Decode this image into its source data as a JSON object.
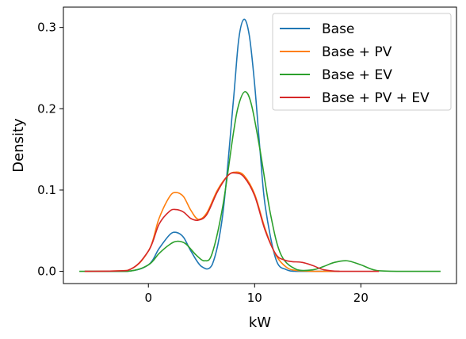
{
  "chart_data": {
    "type": "line",
    "title": "",
    "xlabel": "kW",
    "ylabel": "Density",
    "xlim": [
      -8,
      29
    ],
    "ylim": [
      -0.015,
      0.325
    ],
    "xticks": [
      0,
      10,
      20
    ],
    "xtick_labels": [
      "0",
      "10",
      "20"
    ],
    "yticks": [
      0.0,
      0.1,
      0.2,
      0.3
    ],
    "ytick_labels": [
      "0.0",
      "0.1",
      "0.2",
      "0.3"
    ],
    "grid": false,
    "legend_position": "top-right",
    "series": [
      {
        "name": "Base",
        "color": "#1f77b4",
        "x": [
          -6,
          -2,
          0,
          1,
          2,
          2.6,
          3.3,
          4,
          5,
          6,
          7,
          8,
          8.5,
          9,
          9.5,
          10,
          10.5,
          11,
          12,
          13,
          14,
          16,
          18
        ],
        "y": [
          0.0,
          0.0,
          0.008,
          0.028,
          0.045,
          0.048,
          0.042,
          0.025,
          0.006,
          0.008,
          0.07,
          0.21,
          0.285,
          0.31,
          0.29,
          0.23,
          0.15,
          0.08,
          0.015,
          0.002,
          0.0,
          0.0,
          0.0
        ]
      },
      {
        "name": "Base + PV",
        "color": "#ff7f0e",
        "x": [
          -6,
          -2,
          0,
          1,
          2,
          2.6,
          3.3,
          4,
          4.7,
          5.5,
          6.5,
          7.5,
          8.2,
          9,
          10,
          11,
          12,
          13,
          14,
          16,
          18
        ],
        "y": [
          0.0,
          0.001,
          0.025,
          0.065,
          0.092,
          0.097,
          0.092,
          0.075,
          0.064,
          0.072,
          0.1,
          0.118,
          0.122,
          0.118,
          0.095,
          0.052,
          0.02,
          0.005,
          0.001,
          0.0,
          0.0
        ]
      },
      {
        "name": "Base + EV",
        "color": "#2ca02c",
        "x": [
          -6.5,
          -2,
          0,
          1,
          2,
          2.7,
          3.5,
          4.5,
          5.3,
          6,
          7,
          8,
          8.5,
          9.1,
          9.7,
          10.5,
          11.5,
          12.5,
          14,
          15.5,
          16.5,
          17.5,
          18.7,
          20,
          21.5,
          24,
          27.5
        ],
        "y": [
          0.0,
          0.0,
          0.008,
          0.022,
          0.033,
          0.037,
          0.034,
          0.02,
          0.013,
          0.022,
          0.08,
          0.17,
          0.205,
          0.221,
          0.205,
          0.15,
          0.07,
          0.02,
          0.002,
          0.002,
          0.006,
          0.011,
          0.013,
          0.008,
          0.001,
          0.0,
          0.0
        ]
      },
      {
        "name": "Base + PV + EV",
        "color": "#d62728",
        "x": [
          -6,
          -2,
          0,
          1,
          2,
          2.6,
          3.3,
          4,
          4.7,
          5.5,
          6.5,
          7.5,
          8.2,
          9,
          10,
          11,
          12,
          12.8,
          13.5,
          14.5,
          15.5,
          16.5,
          18,
          20,
          21.7
        ],
        "y": [
          0.0,
          0.001,
          0.025,
          0.058,
          0.074,
          0.076,
          0.073,
          0.065,
          0.063,
          0.07,
          0.098,
          0.118,
          0.121,
          0.116,
          0.093,
          0.05,
          0.021,
          0.014,
          0.012,
          0.011,
          0.007,
          0.002,
          0.0,
          0.0,
          0.0
        ]
      }
    ]
  }
}
